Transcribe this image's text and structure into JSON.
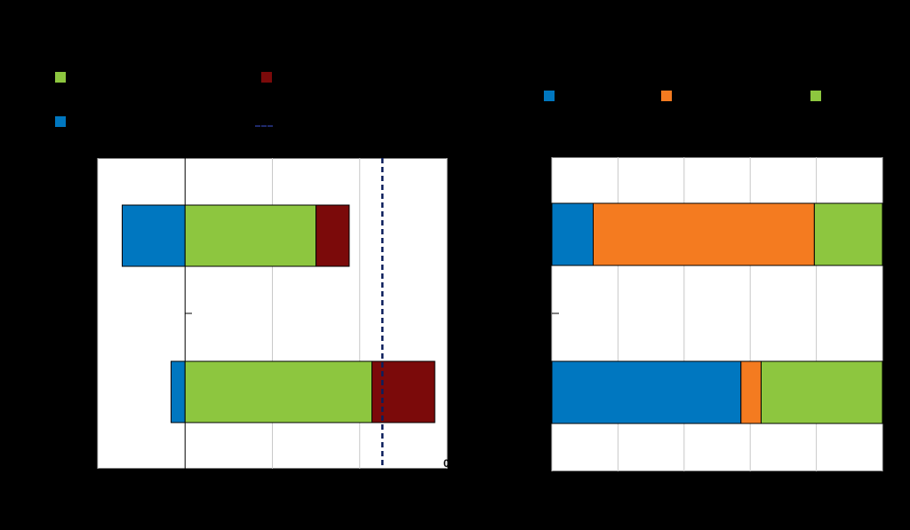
{
  "chart_data": [
    {
      "type": "bar",
      "orientation": "horizontal",
      "stacked": true,
      "title": "",
      "xlabel": "",
      "ylabel": "",
      "xlim": [
        -1,
        3
      ],
      "grid": true,
      "categories": [
        "",
        ""
      ],
      "series": [
        {
          "color": "#0077c0",
          "values": [
            -0.72,
            -0.16
          ]
        },
        {
          "color": "#8dc63f",
          "values": [
            1.5,
            2.14
          ]
        },
        {
          "color": "#7b0a0a",
          "values": [
            0.38,
            0.72
          ]
        }
      ],
      "reference_line": {
        "value": 2.26,
        "style": "dashed",
        "color": "#0b1f5c"
      },
      "legend_entries": [
        {
          "color": "#8dc63f",
          "label": "",
          "kind": "swatch"
        },
        {
          "color": "#7b0a0a",
          "label": "",
          "kind": "swatch"
        },
        {
          "color": "#0077c0",
          "label": "",
          "kind": "swatch"
        },
        {
          "color": "#0b1f5c",
          "label": "",
          "kind": "dashed-line"
        }
      ],
      "legend_position": "top",
      "stray_label": "0"
    },
    {
      "type": "bar",
      "orientation": "horizontal",
      "stacked": true,
      "title": "",
      "xlabel": "",
      "ylabel": "",
      "xlim": [
        0,
        100
      ],
      "grid": true,
      "categories": [
        "",
        ""
      ],
      "series": [
        {
          "color": "#0077c0",
          "values": [
            12.5,
            57.2
          ]
        },
        {
          "color": "#f47b20",
          "values": [
            66.9,
            6.1
          ]
        },
        {
          "color": "#8dc63f",
          "values": [
            20.6,
            36.7
          ]
        }
      ],
      "legend_entries": [
        {
          "color": "#0077c0",
          "label": "",
          "kind": "swatch"
        },
        {
          "color": "#f47b20",
          "label": "",
          "kind": "swatch"
        },
        {
          "color": "#8dc63f",
          "label": "",
          "kind": "swatch"
        }
      ],
      "legend_position": "top"
    }
  ]
}
